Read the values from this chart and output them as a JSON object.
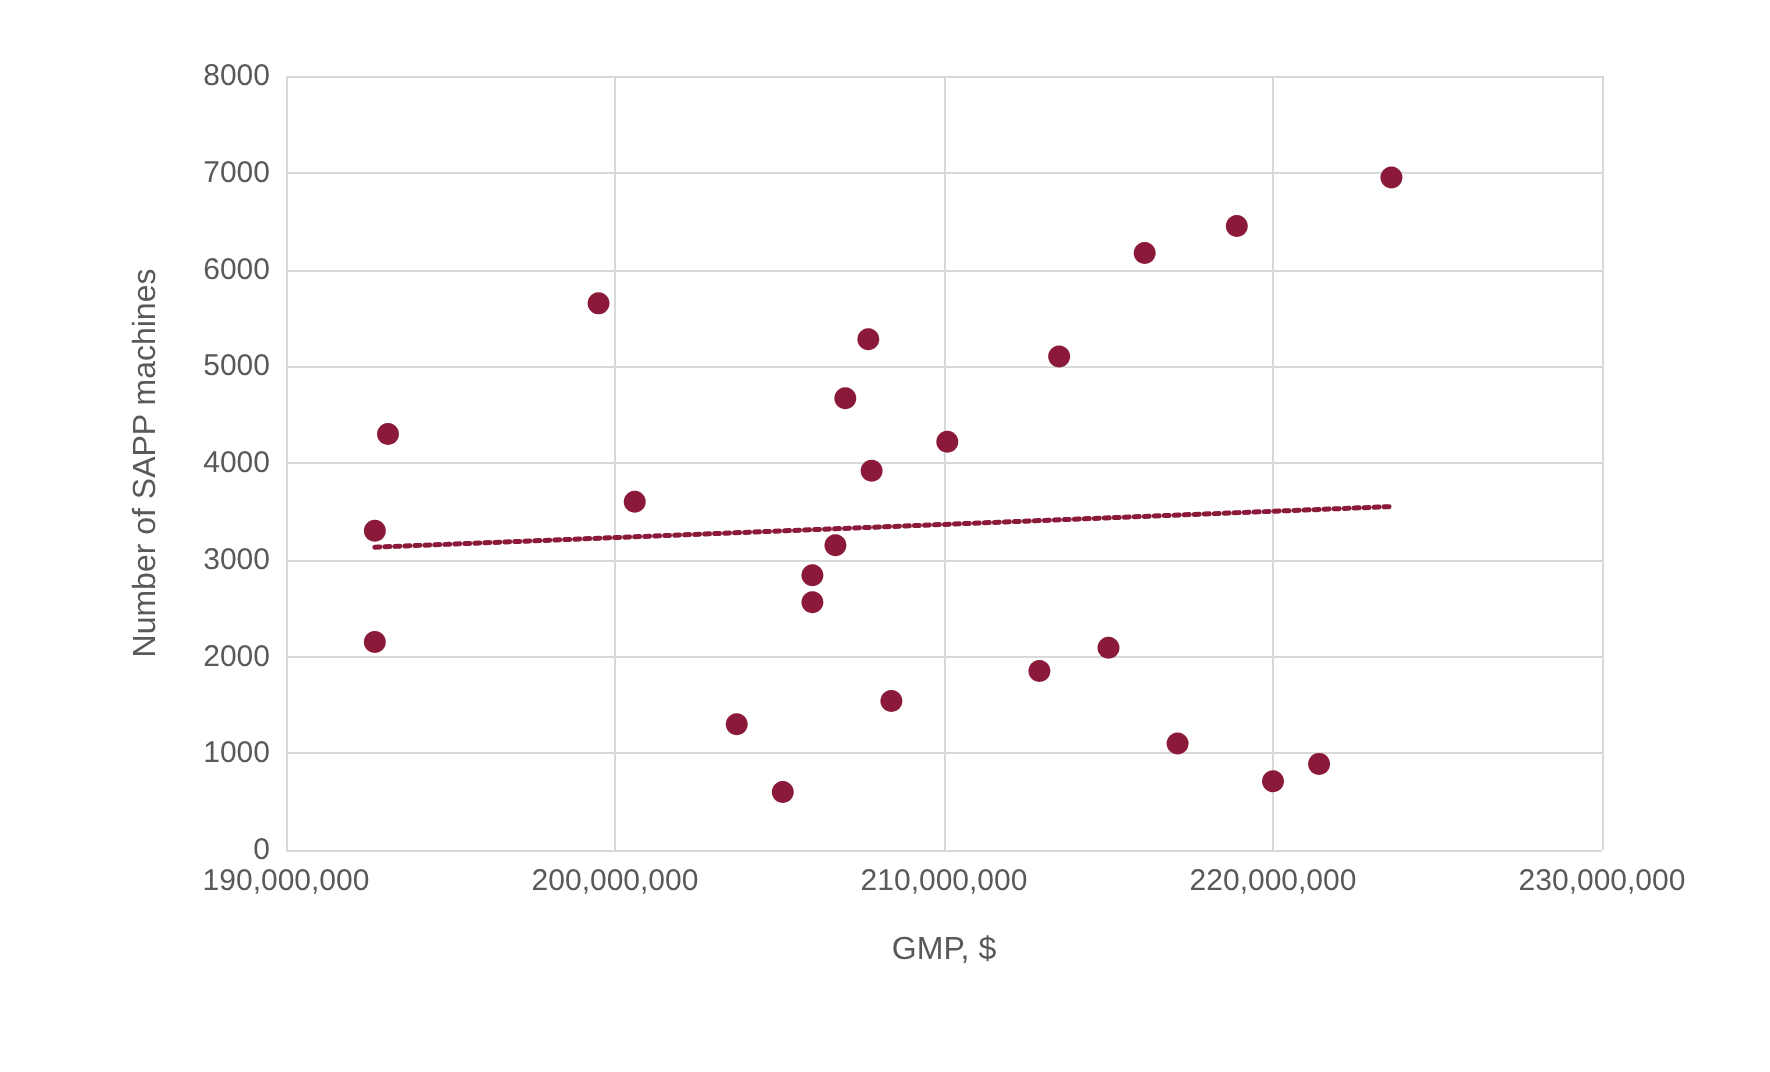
{
  "chart_data": {
    "type": "scatter",
    "xlabel": "GMP, $",
    "ylabel": "Number of SAPP machines",
    "xlim": [
      190000000,
      230000000
    ],
    "xticks": [
      {
        "value": 190000000,
        "label": "190,000,000"
      },
      {
        "value": 200000000,
        "label": "200,000,000"
      },
      {
        "value": 210000000,
        "label": "210,000,000"
      },
      {
        "value": 220000000,
        "label": "220,000,000"
      },
      {
        "value": 230000000,
        "label": "230,000,000"
      }
    ],
    "ylim": [
      0,
      8000
    ],
    "yticks": [
      0,
      1000,
      2000,
      3000,
      4000,
      5000,
      6000,
      7000,
      8000
    ],
    "grid": true,
    "marker": "circle",
    "series": [
      {
        "color": "#8b1a3a",
        "x": [
          192700000,
          192700000,
          193100000,
          199500000,
          200600000,
          203700000,
          205100000,
          206000000,
          206000000,
          206700000,
          207000000,
          207700000,
          207800000,
          208400000,
          210100000,
          212900000,
          213500000,
          215000000,
          216100000,
          217100000,
          218900000,
          220000000,
          221400000,
          223600000
        ],
        "values": [
          3300,
          2150,
          4300,
          5650,
          3600,
          1300,
          600,
          2840,
          2560,
          3150,
          4670,
          5280,
          3920,
          1540,
          4220,
          1850,
          5100,
          2090,
          6170,
          1100,
          6450,
          710,
          890,
          6950
        ]
      },
      {
        "type": "line",
        "color": "#8b1a3a",
        "line_style": "dotted",
        "marker": "none",
        "x": [
          192700000,
          223600000
        ],
        "values": [
          3130,
          3550
        ]
      }
    ]
  }
}
